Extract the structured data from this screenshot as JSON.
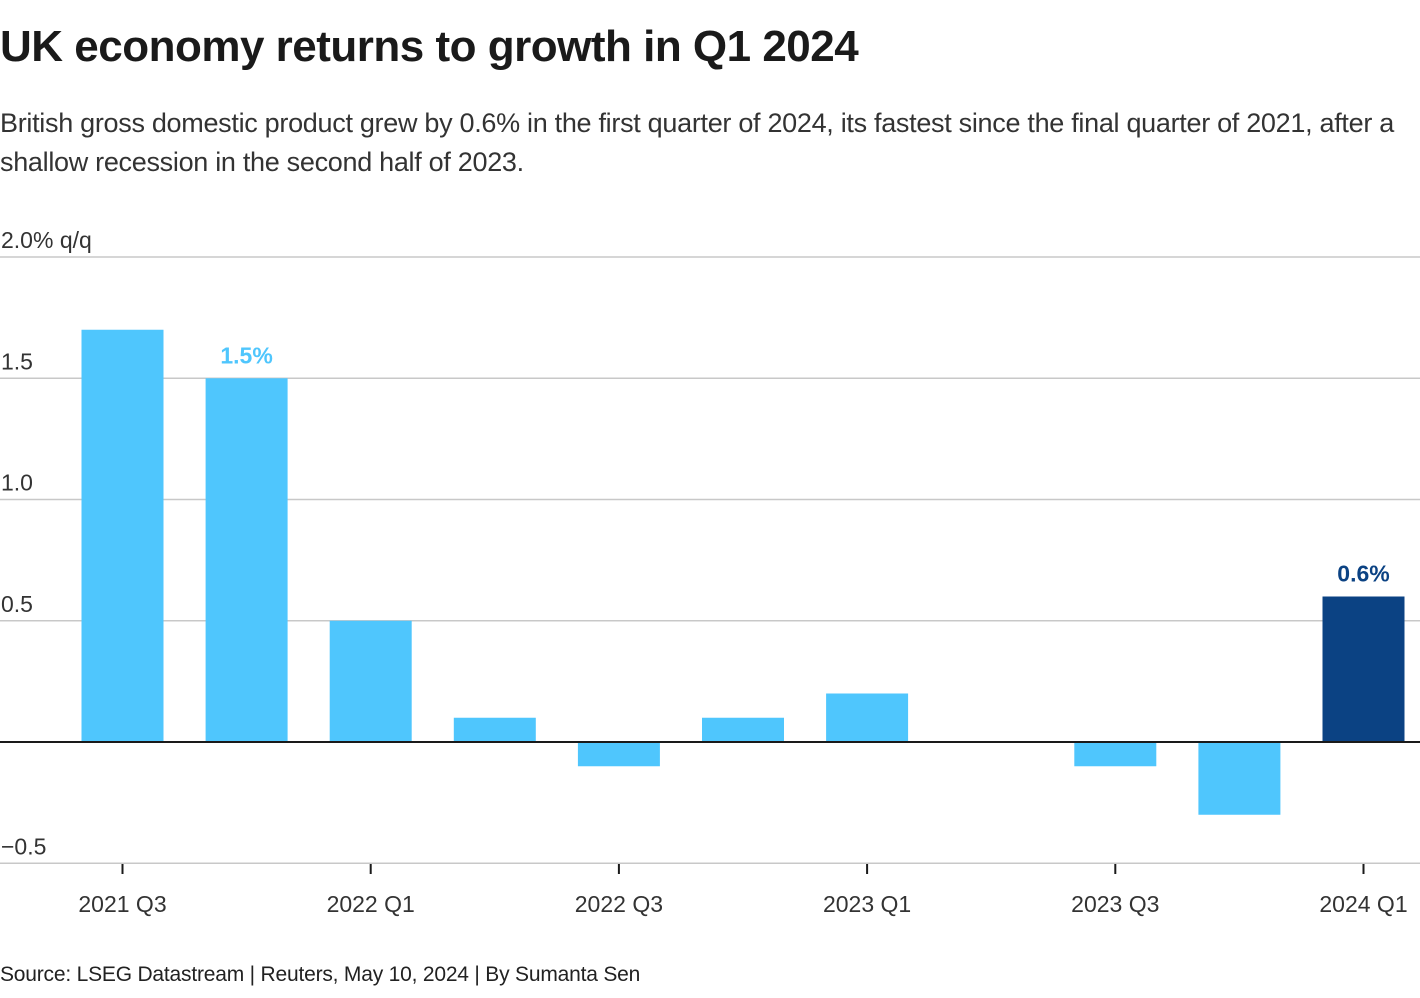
{
  "header": {
    "title": "UK economy returns to growth in Q1 2024",
    "subtitle": "British gross domestic product grew by 0.6% in the first quarter of 2024, its fastest since the final quarter of 2021, after a shallow recession in the second half of 2023."
  },
  "footer": {
    "source": "Source: LSEG Datastream | Reuters, May 10, 2024 | By Sumanta Sen"
  },
  "colors": {
    "bar": "#4fc6fd",
    "highlight": "#0b4283",
    "gridline": "#c8c8c8",
    "zeroline": "#1a1a1a",
    "text": "#333333"
  },
  "chart_data": {
    "type": "bar",
    "title": "UK economy returns to growth in Q1 2024",
    "xlabel": "",
    "ylabel": "% q/q",
    "ylim": [
      -0.5,
      2.0
    ],
    "yticks": [
      {
        "value": 2.0,
        "label": "2.0% q/q"
      },
      {
        "value": 1.5,
        "label": "1.5"
      },
      {
        "value": 1.0,
        "label": "1.0"
      },
      {
        "value": 0.5,
        "label": "0.5"
      },
      {
        "value": 0.0,
        "label": ""
      },
      {
        "value": -0.5,
        "label": "−0.5"
      }
    ],
    "grid": true,
    "categories": [
      "2021 Q3",
      "2021 Q4",
      "2022 Q1",
      "2022 Q2",
      "2022 Q3",
      "2022 Q4",
      "2023 Q1",
      "2023 Q2",
      "2023 Q3",
      "2023 Q4",
      "2024 Q1"
    ],
    "values": [
      1.7,
      1.5,
      0.5,
      0.1,
      -0.1,
      0.1,
      0.2,
      0.0,
      -0.1,
      -0.3,
      0.6
    ],
    "highlight_index": 10,
    "xtick_labels": [
      {
        "index": 0,
        "label": "2021 Q3"
      },
      {
        "index": 2,
        "label": "2022 Q1"
      },
      {
        "index": 4,
        "label": "2022 Q3"
      },
      {
        "index": 6,
        "label": "2023 Q1"
      },
      {
        "index": 8,
        "label": "2023 Q3"
      },
      {
        "index": 10,
        "label": "2024 Q1"
      }
    ],
    "annotations": [
      {
        "index": 1,
        "label": "1.5%",
        "color": "#4fc6fd"
      },
      {
        "index": 10,
        "label": "0.6%",
        "color": "#0b4283"
      }
    ]
  }
}
